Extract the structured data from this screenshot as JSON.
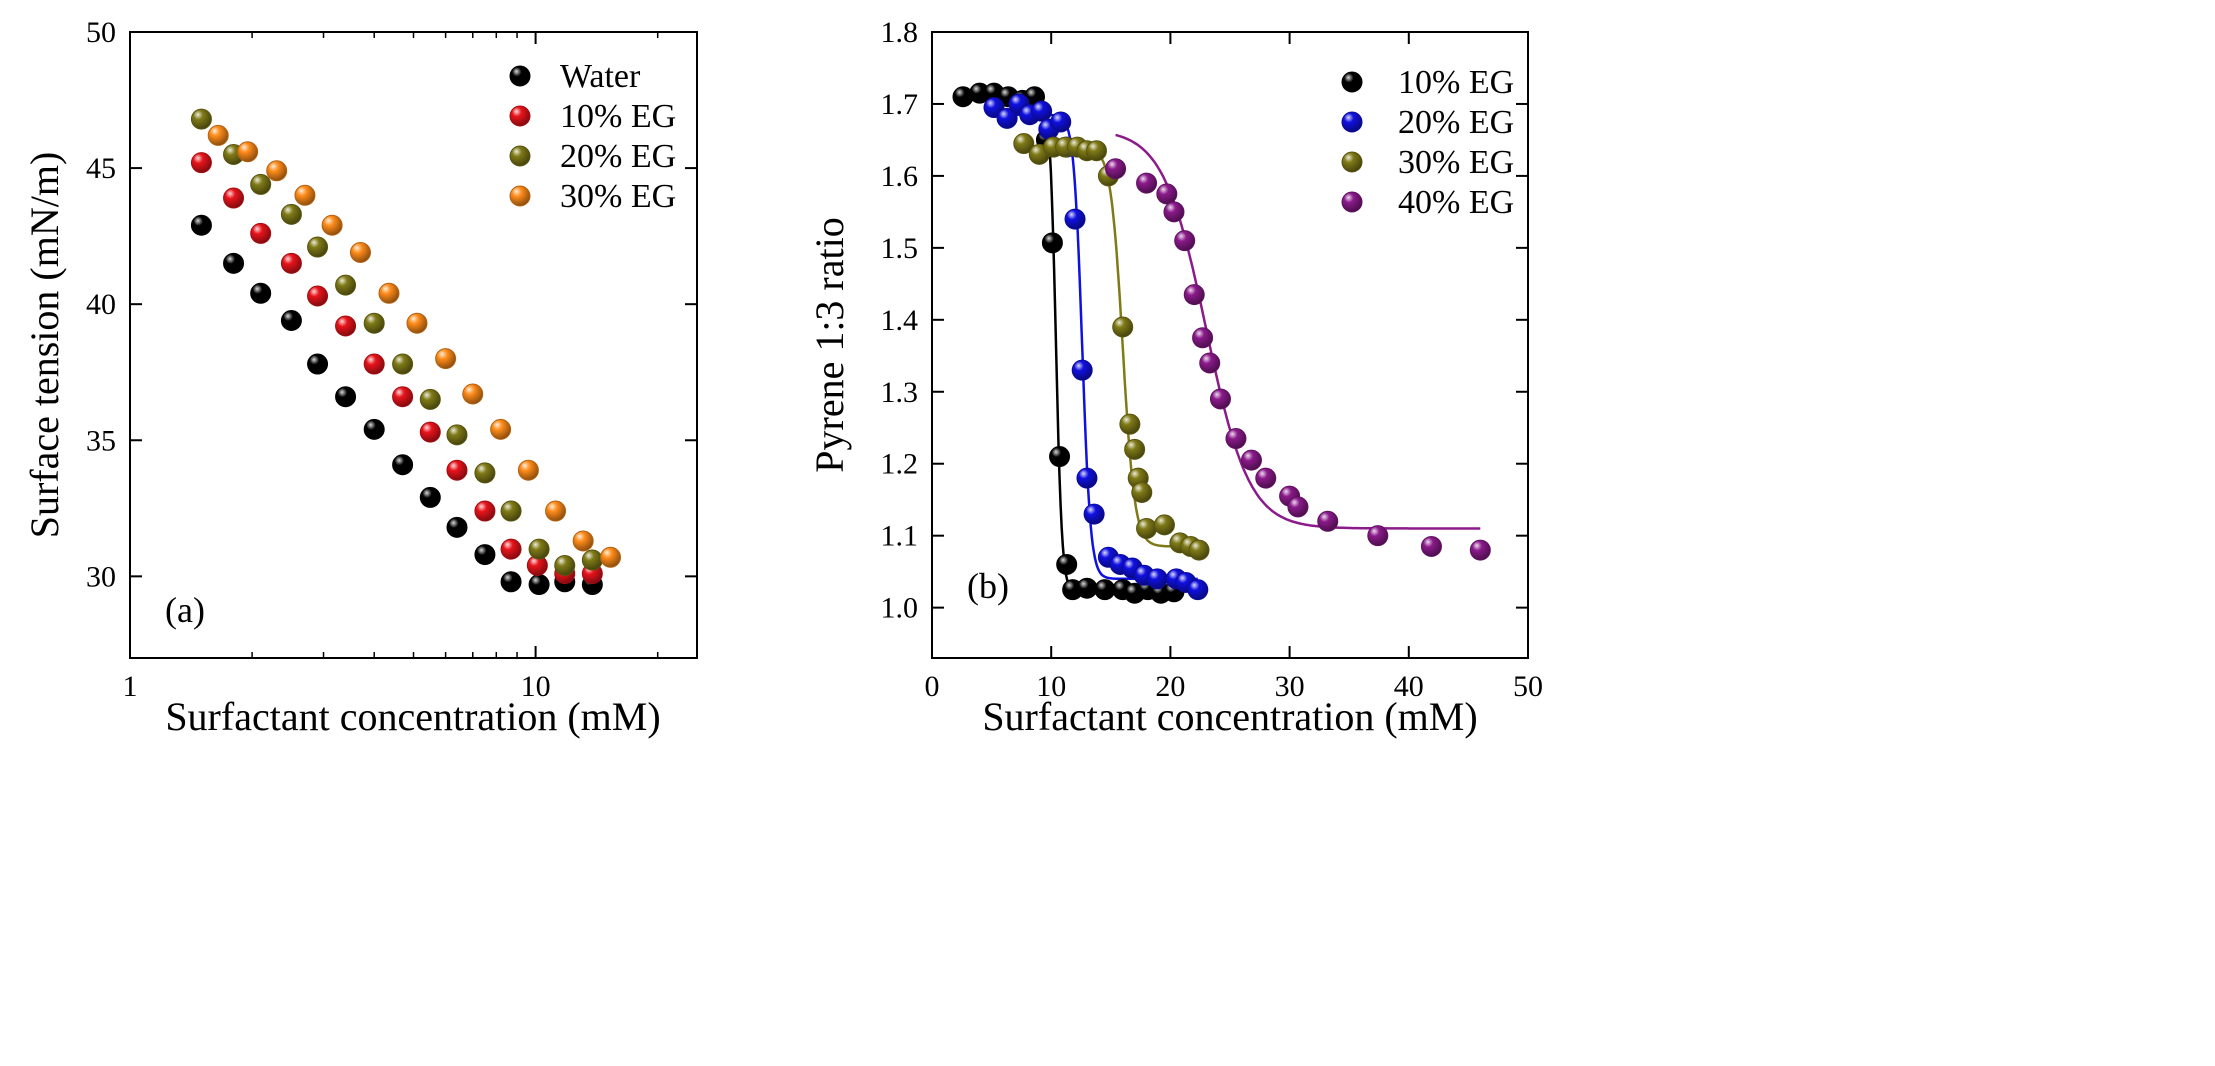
{
  "chart_data": [
    {
      "panel_label": "(a)",
      "type": "scatter",
      "x_scale": "log",
      "xlabel": "Surfactant concentration  (mM)",
      "ylabel": "Surface tension  (mN/m)",
      "xlim": [
        1,
        25
      ],
      "ylim": [
        27,
        50
      ],
      "x_ticks": [
        1,
        10
      ],
      "x_tick_labels": [
        "1",
        "10"
      ],
      "y_ticks": [
        30,
        35,
        40,
        45,
        50
      ],
      "y_tick_labels": [
        "30",
        "35",
        "40",
        "45",
        "50"
      ],
      "legend_position": "top-right",
      "series": [
        {
          "name": "Water",
          "color": "#000000",
          "x": [
            1.5,
            1.8,
            2.1,
            2.5,
            2.9,
            3.4,
            4.0,
            4.7,
            5.5,
            6.4,
            7.5,
            8.7,
            10.2,
            11.8,
            13.8
          ],
          "y": [
            42.9,
            41.5,
            40.4,
            39.4,
            37.8,
            36.6,
            35.4,
            34.1,
            32.9,
            31.8,
            30.8,
            29.8,
            29.7,
            29.8,
            29.7
          ]
        },
        {
          "name": "10% EG",
          "color": "#e8141b",
          "x": [
            1.5,
            1.8,
            2.1,
            2.5,
            2.9,
            3.4,
            4.0,
            4.7,
            5.5,
            6.4,
            7.5,
            8.7,
            10.1,
            11.8,
            13.8
          ],
          "y": [
            45.2,
            43.9,
            42.6,
            41.5,
            40.3,
            39.2,
            37.8,
            36.6,
            35.3,
            33.9,
            32.4,
            31.0,
            30.4,
            30.1,
            30.1
          ]
        },
        {
          "name": "20% EG",
          "color": "#7f7a17",
          "x": [
            1.5,
            1.8,
            2.1,
            2.5,
            2.9,
            3.4,
            4.0,
            4.7,
            5.5,
            6.4,
            7.5,
            8.7,
            10.2,
            11.8,
            13.8
          ],
          "y": [
            46.8,
            45.5,
            44.4,
            43.3,
            42.1,
            40.7,
            39.3,
            37.8,
            36.5,
            35.2,
            33.8,
            32.4,
            31.0,
            30.4,
            30.6
          ]
        },
        {
          "name": "30% EG",
          "color": "#ff8c1a",
          "x": [
            1.65,
            1.95,
            2.3,
            2.7,
            3.15,
            3.7,
            4.35,
            5.1,
            6.0,
            7.0,
            8.2,
            9.6,
            11.2,
            13.1,
            15.3
          ],
          "y": [
            46.2,
            45.6,
            44.9,
            44.0,
            42.9,
            41.9,
            40.4,
            39.3,
            38.0,
            36.7,
            35.4,
            33.9,
            32.4,
            31.3,
            30.7
          ]
        }
      ]
    },
    {
      "panel_label": "(b)",
      "type": "scatter",
      "xlabel": "Surfactant concentration  (mM)",
      "ylabel": "Pyrene 1:3 ratio",
      "xlim": [
        0,
        50
      ],
      "ylim": [
        0.93,
        1.8
      ],
      "x_ticks": [
        0,
        10,
        20,
        30,
        40,
        50
      ],
      "x_tick_labels": [
        "0",
        "10",
        "20",
        "30",
        "40",
        "50"
      ],
      "y_ticks": [
        1.0,
        1.1,
        1.2,
        1.3,
        1.4,
        1.5,
        1.6,
        1.7,
        1.8
      ],
      "y_tick_labels": [
        "1.0",
        "1.1",
        "1.2",
        "1.3",
        "1.4",
        "1.5",
        "1.6",
        "1.7",
        "1.8"
      ],
      "legend_position": "top-right",
      "series": [
        {
          "name": "10% EG",
          "color": "#000000",
          "x": [
            2.6,
            4.0,
            5.2,
            6.4,
            7.6,
            8.6,
            9.6,
            10.1,
            10.7,
            11.3,
            11.8,
            13.0,
            14.5,
            16.0,
            17.0,
            18.1,
            19.2,
            20.3
          ],
          "y": [
            1.71,
            1.715,
            1.715,
            1.71,
            1.705,
            1.71,
            1.65,
            1.507,
            1.21,
            1.06,
            1.025,
            1.027,
            1.025,
            1.025,
            1.02,
            1.025,
            1.02,
            1.022
          ],
          "fit": {
            "x0": 10.4,
            "top": 1.71,
            "bottom": 1.023,
            "k": 0.25,
            "xrange": [
              2.6,
              20.8
            ]
          }
        },
        {
          "name": "20% EG",
          "color": "#1010e0",
          "x": [
            5.2,
            6.3,
            7.3,
            8.2,
            9.2,
            9.8,
            10.8,
            11.3,
            12.0,
            12.6,
            13.0,
            13.6,
            14.8,
            15.8,
            16.8,
            17.8,
            18.9,
            20.5,
            21.3,
            22.3
          ],
          "y": [
            1.695,
            1.68,
            1.7,
            1.685,
            1.69,
            1.665,
            1.675,
            1.64,
            1.54,
            1.33,
            1.18,
            1.13,
            1.07,
            1.06,
            1.055,
            1.045,
            1.04,
            1.04,
            1.035,
            1.025
          ],
          "fit": {
            "x0": 12.6,
            "top": 1.685,
            "bottom": 1.04,
            "k": 0.35,
            "xrange": [
              5.2,
              22.3
            ]
          }
        },
        {
          "name": "30% EG",
          "color": "#7f7a17",
          "x": [
            7.7,
            9.0,
            10.2,
            11.2,
            12.2,
            13.0,
            13.8,
            14.8,
            16.0,
            16.6,
            17.0,
            17.3,
            17.6,
            18.0,
            19.5,
            20.8,
            21.7,
            22.4
          ],
          "y": [
            1.645,
            1.63,
            1.64,
            1.64,
            1.64,
            1.635,
            1.635,
            1.6,
            1.39,
            1.255,
            1.22,
            1.18,
            1.16,
            1.11,
            1.115,
            1.09,
            1.085,
            1.08
          ],
          "fit": {
            "x0": 16.0,
            "top": 1.64,
            "bottom": 1.085,
            "k": 0.5,
            "xrange": [
              7.7,
              22.4
            ]
          }
        },
        {
          "name": "40% EG",
          "color": "#8b1a8b",
          "x": [
            15.4,
            18.0,
            19.7,
            20.3,
            21.2,
            22.0,
            22.7,
            23.3,
            24.2,
            25.5,
            26.8,
            28.0,
            30.0,
            30.7,
            33.2,
            37.4,
            41.9,
            46.0
          ],
          "y": [
            1.61,
            1.59,
            1.575,
            1.55,
            1.51,
            1.435,
            1.375,
            1.34,
            1.29,
            1.235,
            1.205,
            1.18,
            1.155,
            1.14,
            1.12,
            1.1,
            1.085,
            1.08
          ],
          "fit": {
            "x0": 23.0,
            "top": 1.665,
            "bottom": 1.11,
            "k": 1.8,
            "xrange": [
              15.4,
              46.0
            ]
          }
        }
      ]
    }
  ]
}
